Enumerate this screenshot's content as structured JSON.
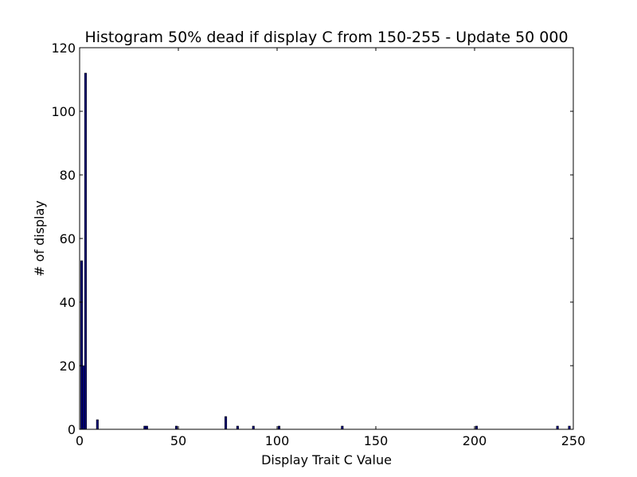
{
  "chart_data": {
    "type": "bar",
    "title": "Histogram 50% dead if display C from 150-255 - Update 50 000",
    "xlabel": "Display Trait C Value",
    "ylabel": "# of display",
    "xlim": [
      0,
      250
    ],
    "ylim": [
      0,
      120
    ],
    "xticks": [
      "0",
      "50",
      "100",
      "150",
      "200",
      "250"
    ],
    "yticks": [
      "0",
      "20",
      "40",
      "60",
      "80",
      "100",
      "120"
    ],
    "grid": false,
    "bar_color": "#000080",
    "bins": [
      {
        "x": 1,
        "value": 53
      },
      {
        "x": 2,
        "value": 20
      },
      {
        "x": 3,
        "value": 112
      },
      {
        "x": 9,
        "value": 3
      },
      {
        "x": 33,
        "value": 1
      },
      {
        "x": 34,
        "value": 1
      },
      {
        "x": 49,
        "value": 1
      },
      {
        "x": 74,
        "value": 4
      },
      {
        "x": 80,
        "value": 1
      },
      {
        "x": 88,
        "value": 1
      },
      {
        "x": 101,
        "value": 1
      },
      {
        "x": 133,
        "value": 1
      },
      {
        "x": 201,
        "value": 1
      },
      {
        "x": 242,
        "value": 1
      },
      {
        "x": 248,
        "value": 1
      }
    ]
  }
}
